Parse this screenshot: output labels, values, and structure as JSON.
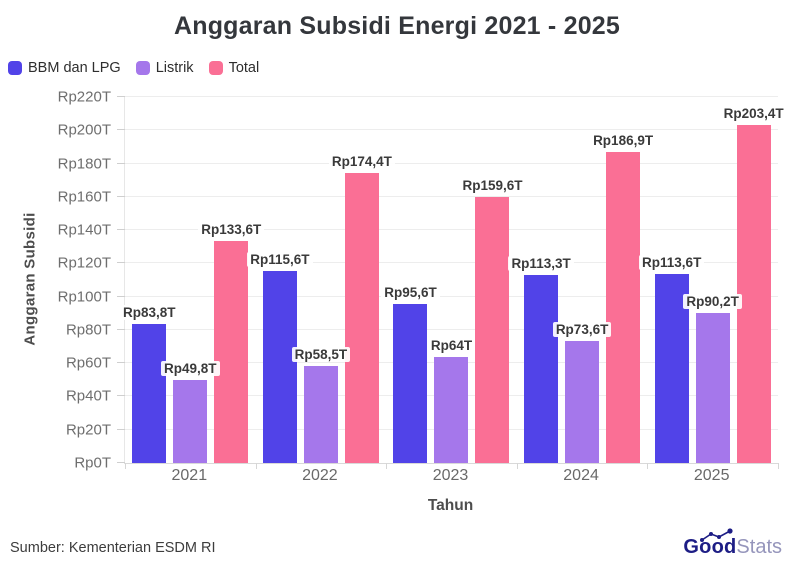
{
  "chart_data": {
    "type": "bar",
    "title": "Anggaran Subsidi Energi 2021 - 2025",
    "categories": [
      "2021",
      "2022",
      "2023",
      "2024",
      "2025"
    ],
    "series": [
      {
        "name": "BBM dan LPG",
        "color": "#5143e8",
        "values": [
          83.8,
          115.6,
          95.6,
          113.3,
          113.6
        ],
        "labels": [
          "Rp83,8T",
          "Rp115,6T",
          "Rp95,6T",
          "Rp113,3T",
          "Rp113,6T"
        ]
      },
      {
        "name": "Listrik",
        "color": "#a577eb",
        "values": [
          49.8,
          58.5,
          64,
          73.6,
          90.2
        ],
        "labels": [
          "Rp49,8T",
          "Rp58,5T",
          "Rp64T",
          "Rp73,6T",
          "Rp90,2T"
        ]
      },
      {
        "name": "Total",
        "color": "#fa6f95",
        "values": [
          133.6,
          174.4,
          159.6,
          186.9,
          203.4
        ],
        "labels": [
          "Rp133,6T",
          "Rp174,4T",
          "Rp159,6T",
          "Rp186,9T",
          "Rp203,4T"
        ]
      }
    ],
    "xlabel": "Tahun",
    "ylabel": "Anggaran Subsidi",
    "ylim": [
      0,
      220
    ],
    "ytick_step": 20,
    "yticks": [
      "Rp0T",
      "Rp20T",
      "Rp40T",
      "Rp60T",
      "Rp80T",
      "Rp100T",
      "Rp120T",
      "Rp140T",
      "Rp160T",
      "Rp180T",
      "Rp200T",
      "Rp220T"
    ],
    "grid": true,
    "legend_position": "top-left"
  },
  "footer": {
    "source": "Sumber: Kementerian ESDM RI",
    "logo": {
      "bold": "Good",
      "light": "Stats"
    }
  }
}
